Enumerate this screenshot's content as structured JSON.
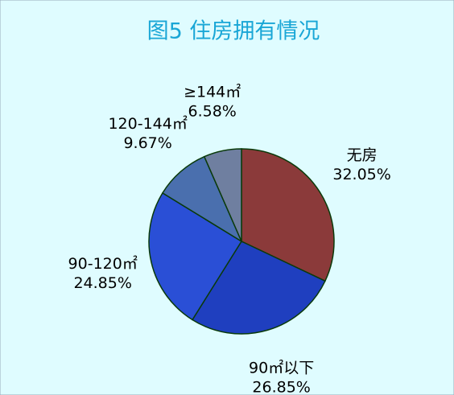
{
  "chart_data": {
    "type": "pie",
    "title": "图5 住房拥有情况",
    "categories": [
      "无房",
      "90㎡以下",
      "90-120㎡",
      "120-144㎡",
      "≥144㎡"
    ],
    "values": [
      32.05,
      26.85,
      24.85,
      9.67,
      6.58
    ],
    "value_labels": [
      "32.05%",
      "26.85%",
      "24.85%",
      "9.67%",
      "6.58%"
    ],
    "colors": [
      "#8b3a3a",
      "#1f3fbf",
      "#2a4fd6",
      "#4a6fae",
      "#6f7fa0"
    ]
  }
}
